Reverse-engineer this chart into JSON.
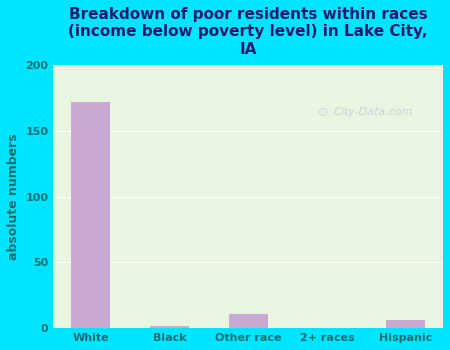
{
  "categories": [
    "White",
    "Black",
    "Other race",
    "2+ races",
    "Hispanic"
  ],
  "values": [
    172,
    2,
    11,
    0,
    6
  ],
  "bar_color": "#c9a8d4",
  "title": "Breakdown of poor residents within races\n(income below poverty level) in Lake City,\nIA",
  "ylabel": "absolute numbers",
  "ylim": [
    0,
    200
  ],
  "yticks": [
    0,
    50,
    100,
    150,
    200
  ],
  "background_outer": "#00e5ff",
  "background_inner_top": "#e8f5e0",
  "background_inner_bottom": "#ffffff",
  "title_color": "#1a1a6e",
  "axis_color": "#1a6e6e",
  "watermark": "City-Data.com",
  "title_fontsize": 11,
  "ylabel_fontsize": 9,
  "tick_fontsize": 8
}
